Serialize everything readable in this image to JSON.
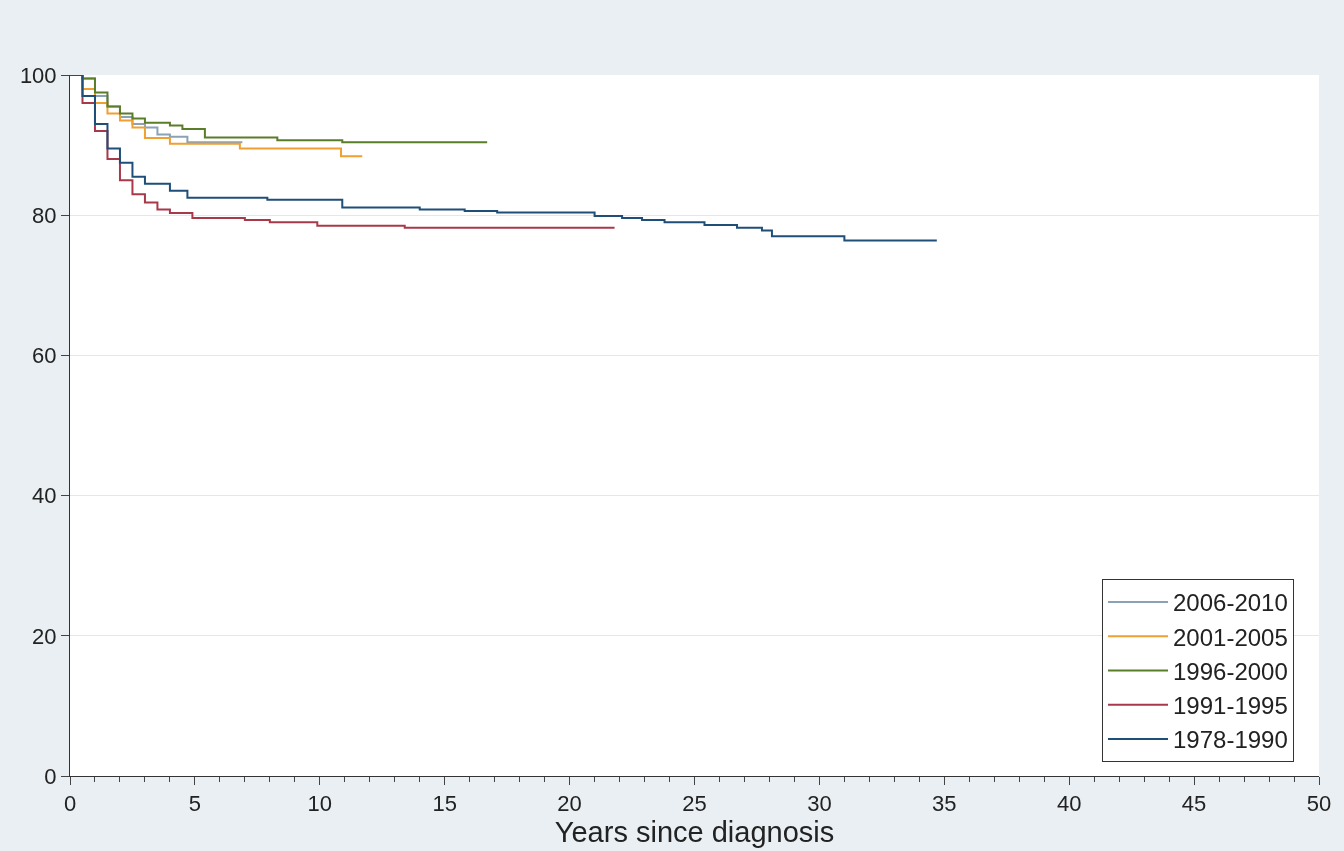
{
  "chart_data": {
    "type": "step",
    "xlabel": "Years since diagnosis",
    "xlim": [
      0,
      50
    ],
    "ylim": [
      0,
      100
    ],
    "xticks": [
      0,
      {
        "value": 1,
        "label": null
      },
      {
        "value": 2,
        "label": null
      },
      {
        "value": 3,
        "label": null
      },
      {
        "value": 4,
        "label": null
      },
      5,
      {
        "value": 6,
        "label": null
      },
      {
        "value": 7,
        "label": null
      },
      {
        "value": 8,
        "label": null
      },
      {
        "value": 9,
        "label": null
      },
      10,
      {
        "value": 11,
        "label": null
      },
      {
        "value": 12,
        "label": null
      },
      {
        "value": 13,
        "label": null
      },
      {
        "value": 14,
        "label": null
      },
      15,
      {
        "value": 16,
        "label": null
      },
      {
        "value": 17,
        "label": null
      },
      {
        "value": 18,
        "label": null
      },
      {
        "value": 19,
        "label": null
      },
      20,
      {
        "value": 21,
        "label": null
      },
      {
        "value": 22,
        "label": null
      },
      {
        "value": 23,
        "label": null
      },
      {
        "value": 24,
        "label": null
      },
      25,
      {
        "value": 26,
        "label": null
      },
      {
        "value": 27,
        "label": null
      },
      {
        "value": 28,
        "label": null
      },
      {
        "value": 29,
        "label": null
      },
      30,
      {
        "value": 31,
        "label": null
      },
      {
        "value": 32,
        "label": null
      },
      {
        "value": 33,
        "label": null
      },
      {
        "value": 34,
        "label": null
      },
      35,
      {
        "value": 36,
        "label": null
      },
      {
        "value": 37,
        "label": null
      },
      {
        "value": 38,
        "label": null
      },
      {
        "value": 39,
        "label": null
      },
      40,
      {
        "value": 41,
        "label": null
      },
      {
        "value": 42,
        "label": null
      },
      {
        "value": 43,
        "label": null
      },
      {
        "value": 44,
        "label": null
      },
      45,
      {
        "value": 46,
        "label": null
      },
      {
        "value": 47,
        "label": null
      },
      {
        "value": 48,
        "label": null
      },
      {
        "value": 49,
        "label": null
      },
      50
    ],
    "yticks": [
      0,
      20,
      40,
      60,
      80,
      100
    ],
    "grid": "y",
    "legend": "bottom right",
    "marker": "none",
    "line_style": "solid",
    "series": [
      {
        "name": "2006-2010",
        "color": "#8aa2b4",
        "x": [
          0,
          0.5,
          1,
          1.5,
          2,
          2.5,
          3,
          3.5,
          4,
          4.7,
          6.9
        ],
        "values": [
          100,
          99.5,
          97,
          95.5,
          94,
          93,
          92.5,
          91.5,
          91.2,
          90.4,
          90.4
        ]
      },
      {
        "name": "2001-2005",
        "color": "#f0a030",
        "x": [
          0,
          0.5,
          1,
          1.5,
          2,
          2.5,
          3,
          4,
          6.8,
          10.85,
          11.7
        ],
        "values": [
          100,
          98,
          96,
          94.5,
          93.5,
          92.5,
          91,
          90.2,
          89.5,
          88.4,
          88.4
        ]
      },
      {
        "name": "1996-2000",
        "color": "#5a7d2a",
        "x": [
          0,
          0.5,
          1,
          1.5,
          2,
          2.5,
          3,
          4,
          4.5,
          5.4,
          8.3,
          10.9,
          16.7
        ],
        "values": [
          100,
          99.5,
          97.5,
          95.5,
          94.5,
          93.8,
          93.2,
          92.8,
          92.3,
          91.1,
          90.7,
          90.4,
          90.4
        ]
      },
      {
        "name": "1991-1995",
        "color": "#a8394a",
        "x": [
          0,
          0.5,
          1,
          1.5,
          2,
          2.5,
          3,
          3.5,
          4,
          4.9,
          7,
          8,
          9.9,
          13.4,
          21.8
        ],
        "values": [
          100,
          96,
          92,
          88,
          85,
          83,
          81.8,
          80.8,
          80.3,
          79.6,
          79.3,
          79,
          78.5,
          78.2,
          78.2
        ]
      },
      {
        "name": "1978-1990",
        "color": "#1f4e79",
        "x": [
          0,
          0.5,
          1,
          1.5,
          2,
          2.5,
          3,
          4,
          4.7,
          7.9,
          10.9,
          14,
          15.8,
          17.1,
          21,
          22.1,
          22.9,
          23.8,
          25.4,
          26.7,
          27.7,
          28.1,
          31,
          34.7
        ],
        "values": [
          100,
          97,
          93,
          89.5,
          87.5,
          85.5,
          84.5,
          83.5,
          82.5,
          82.2,
          81.1,
          80.8,
          80.6,
          80.4,
          79.9,
          79.6,
          79.3,
          79,
          78.6,
          78.2,
          77.8,
          77,
          76.4,
          76.4
        ]
      }
    ]
  }
}
